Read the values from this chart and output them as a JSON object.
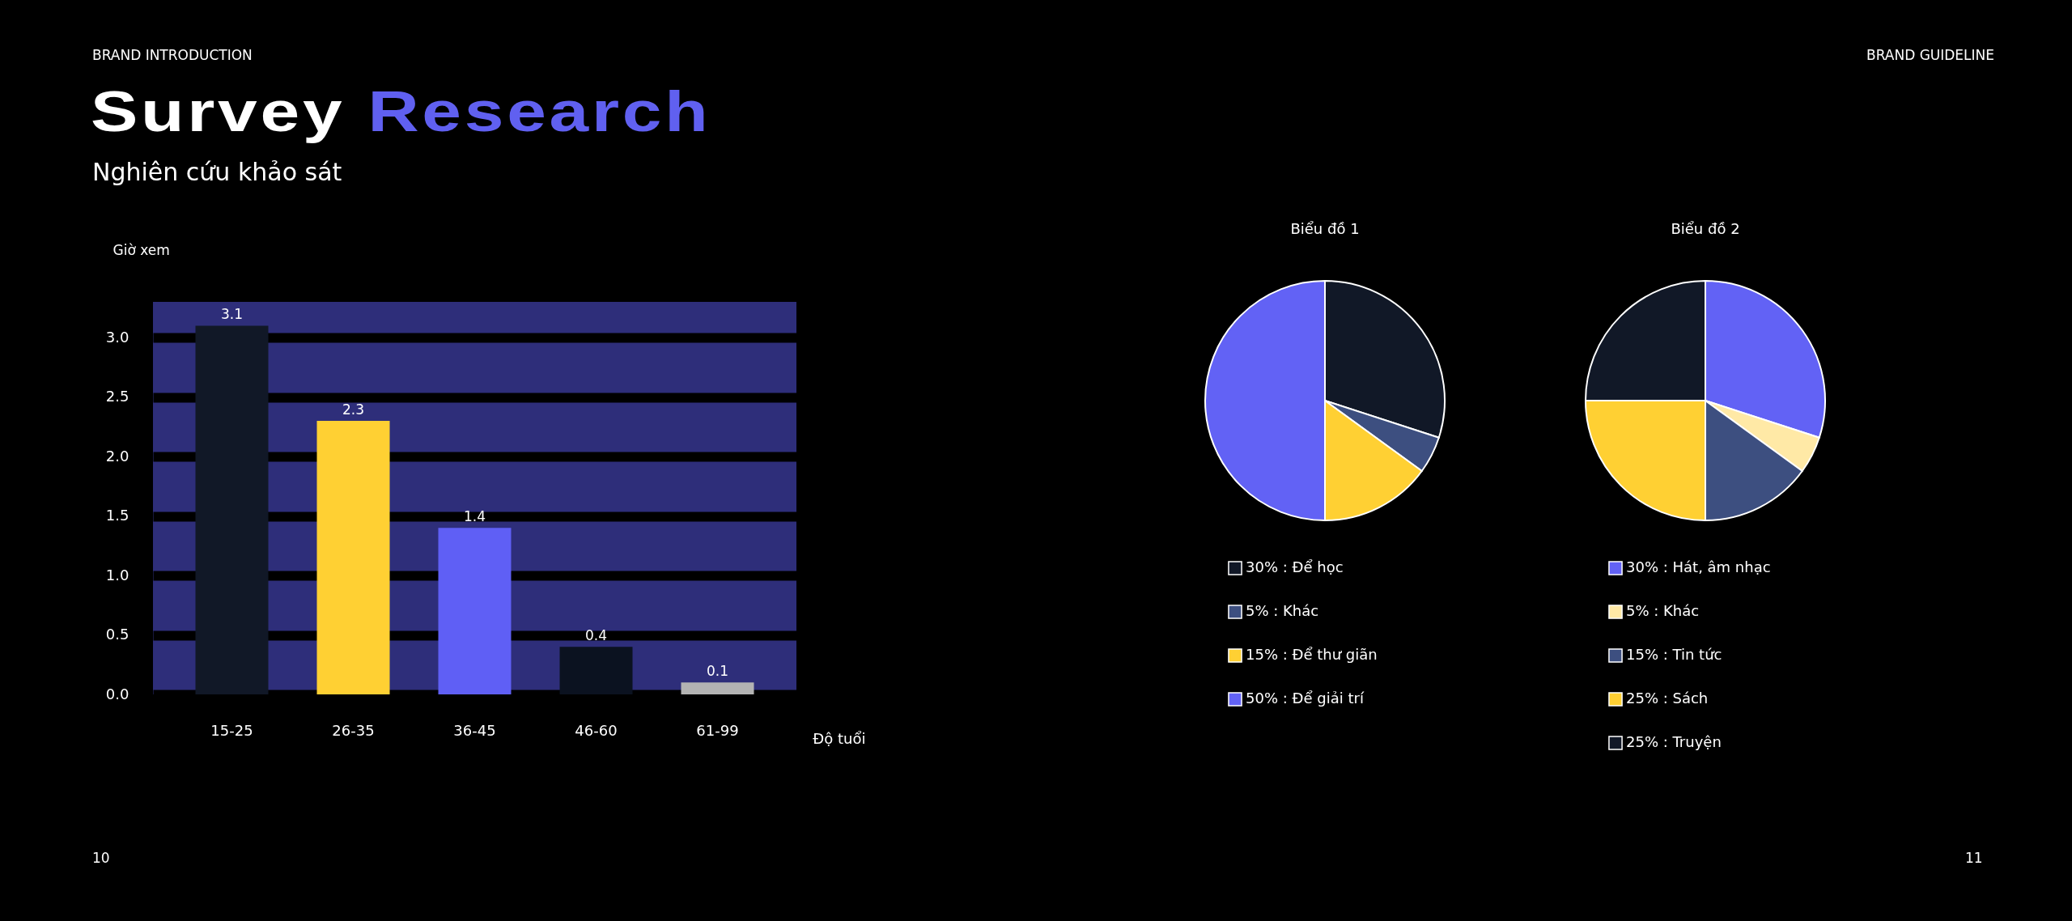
{
  "chart_data": [
    {
      "type": "bar",
      "title": "Survey Research",
      "subtitle": "Nghiên cứu khảo sát",
      "xlabel": "Độ tuổi",
      "ylabel": "Giờ xem",
      "annotations": [
        "BRAND INTRODUCTION",
        "BRAND GUIDELINE",
        "10",
        "11"
      ],
      "categories": [
        "15-25",
        "26-35",
        "36-45",
        "46-60",
        "61-99"
      ],
      "values": [
        3.1,
        2.3,
        1.4,
        0.4,
        0.1
      ],
      "colors": [
        "#111827",
        "#ffd033",
        "#5f5ff5",
        "#0b1220",
        "#b3b3b3"
      ],
      "ylim": [
        0,
        3.3
      ],
      "yticks": [
        {
          "value": 0,
          "label": "0.0"
        },
        {
          "value": 0.5,
          "label": "0.5"
        },
        {
          "value": 1,
          "label": "1.0"
        },
        {
          "value": 1.5,
          "label": "1.5"
        },
        {
          "value": 2,
          "label": "2.0"
        },
        {
          "value": 2.5,
          "label": "2.5"
        },
        {
          "value": 3,
          "label": "3.0"
        }
      ],
      "grid": "y",
      "data_labels": true,
      "legend": false
    },
    {
      "type": "pie",
      "title": "Biểu đồ 1",
      "categories": [
        "30% : Để học",
        "5% : Khác",
        "15% : Để thư giãn",
        "50% : Để giải trí"
      ],
      "values": [
        30,
        5,
        15,
        50
      ],
      "colors": [
        "#111827",
        "#3d4f80",
        "#ffd033",
        "#6262f5"
      ],
      "legend": "bottom"
    },
    {
      "type": "pie",
      "title": "Biểu đồ 2",
      "categories": [
        "30% : Hát, âm nhạc",
        "5% : Khác",
        "15% : Tin tức",
        "25% : Sách",
        "25% : Truyện"
      ],
      "values": [
        30,
        5,
        15,
        25,
        25
      ],
      "colors": [
        "#6262f5",
        "#ffe9a6",
        "#3d4f80",
        "#ffd033",
        "#111827"
      ],
      "legend": "bottom"
    }
  ]
}
